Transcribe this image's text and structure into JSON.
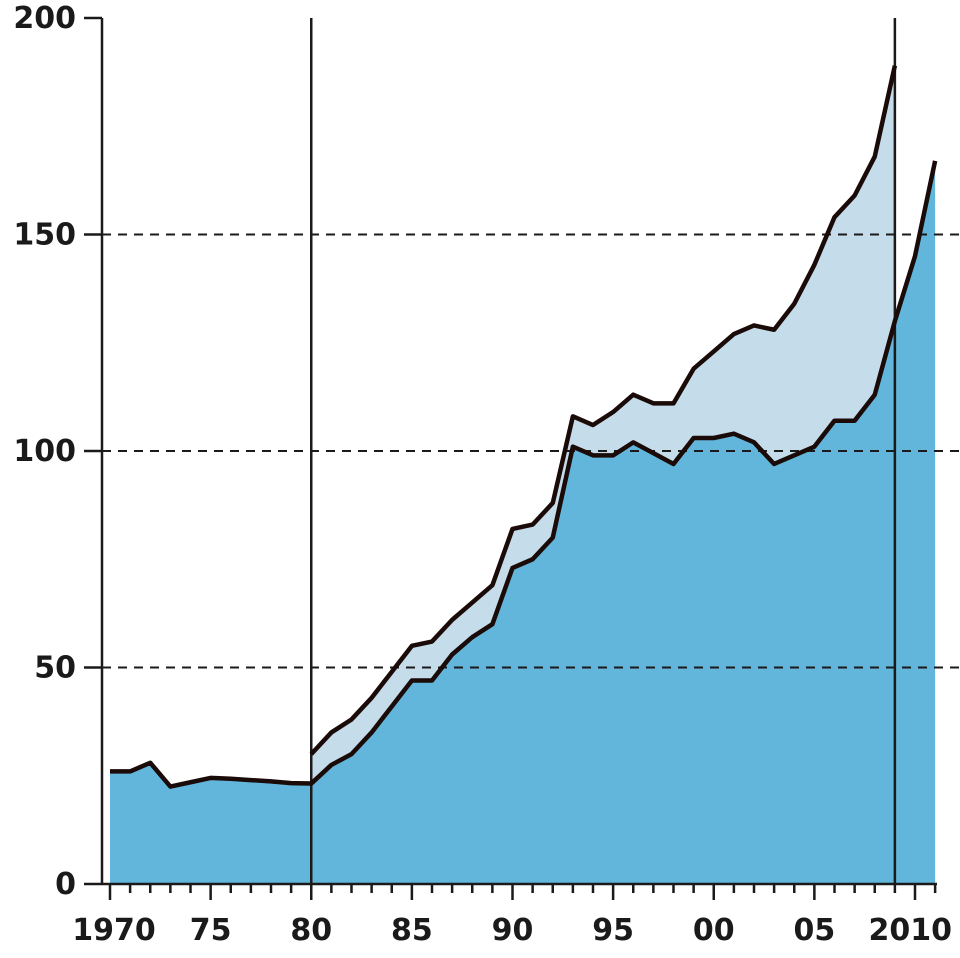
{
  "chart_data": {
    "type": "area",
    "title": "",
    "xlabel": "",
    "ylabel": "",
    "xlim": [
      1969.9,
      2011.2
    ],
    "ylim": [
      0,
      200
    ],
    "grid": "dashed horizontal at 50, 100, 150",
    "y_ticks": [
      0,
      50,
      100,
      150,
      200
    ],
    "x_tick_labels": [
      {
        "x": 1970,
        "label": "1970"
      },
      {
        "x": 1975,
        "label": "75"
      },
      {
        "x": 1980,
        "label": "80"
      },
      {
        "x": 1985,
        "label": "85"
      },
      {
        "x": 1990,
        "label": "90"
      },
      {
        "x": 1995,
        "label": "95"
      },
      {
        "x": 2000,
        "label": "00"
      },
      {
        "x": 2005,
        "label": "05"
      },
      {
        "x": 2010,
        "label": "2010"
      }
    ],
    "vertical_markers": [
      1980,
      2009
    ],
    "colors": {
      "lower_fill": "#62b6db",
      "upper_fill": "#c5dcea",
      "line": "#1a0a08"
    },
    "series": [
      {
        "x": [
          1970,
          1971,
          1972,
          1973,
          1974,
          1975,
          1976,
          1977,
          1978,
          1979,
          1980,
          1981,
          1982,
          1983,
          1984,
          1985,
          1986,
          1987,
          1988,
          1989,
          1990,
          1991,
          1992,
          1993,
          1994,
          1995,
          1996,
          1997,
          1998,
          1999,
          2000,
          2001,
          2002,
          2003,
          2004,
          2005,
          2006,
          2007,
          2008,
          2009,
          2010,
          2011
        ],
        "values": [
          26,
          26,
          28,
          22.5,
          23.5,
          24.5,
          24.3,
          24,
          23.7,
          23.3,
          23.2,
          27.5,
          30,
          35,
          41,
          47,
          47,
          53,
          57,
          60,
          73,
          75,
          80,
          101,
          99,
          99,
          102,
          99.5,
          97,
          103,
          103,
          104,
          102,
          97,
          99,
          101,
          107,
          107,
          113,
          130,
          145,
          167
        ]
      },
      {
        "x": [
          1980,
          1981,
          1982,
          1983,
          1984,
          1985,
          1986,
          1987,
          1988,
          1989,
          1990,
          1991,
          1992,
          1993,
          1994,
          1995,
          1996,
          1997,
          1998,
          1999,
          2000,
          2001,
          2002,
          2003,
          2004,
          2005,
          2006,
          2007,
          2008,
          2009
        ],
        "values": [
          30,
          35,
          38,
          43,
          49,
          55,
          56,
          61,
          65,
          69,
          82,
          83,
          88,
          108,
          106,
          109,
          113,
          111,
          111,
          119,
          123,
          127,
          129,
          128,
          134,
          143,
          154,
          159,
          168,
          189
        ]
      }
    ]
  }
}
